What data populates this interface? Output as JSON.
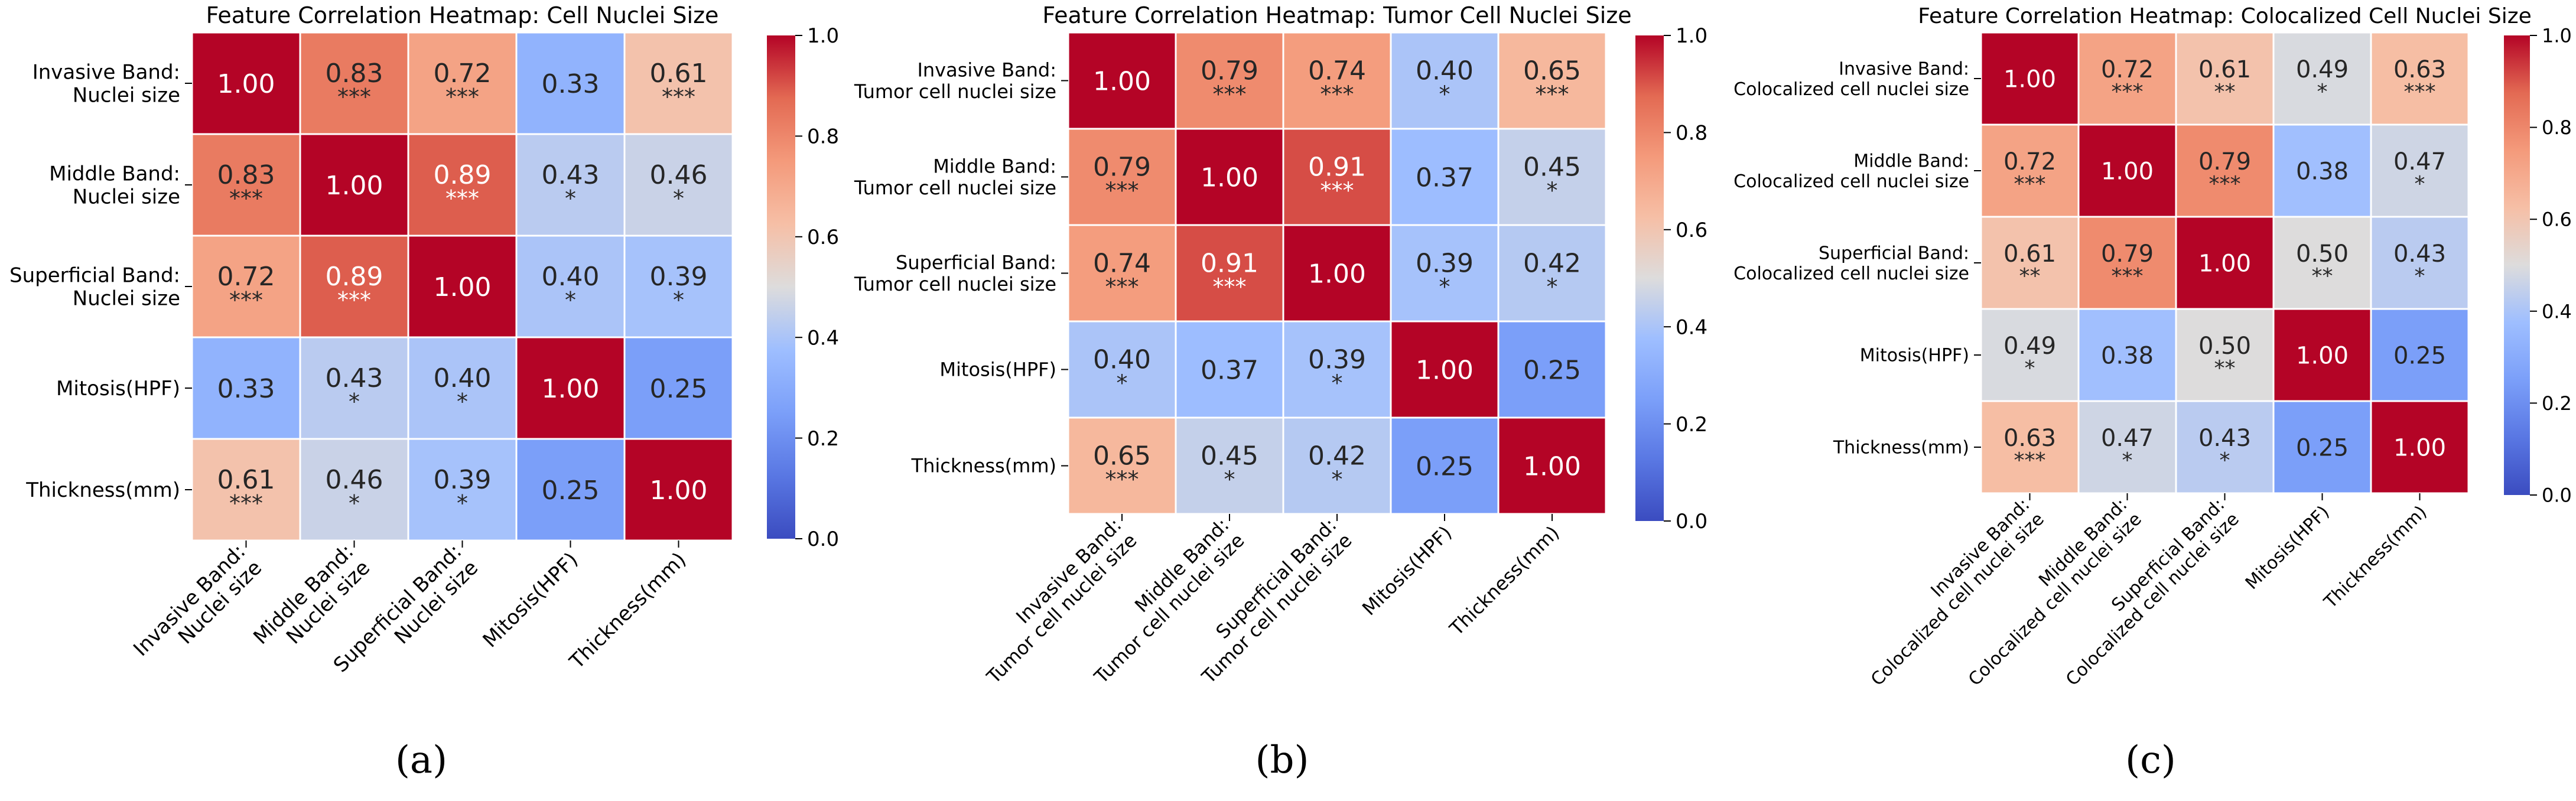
{
  "captions": {
    "a": "(a)",
    "b": "(b)",
    "c": "(c)"
  },
  "chart_data": [
    {
      "type": "heatmap",
      "title": "Feature Correlation Heatmap: Cell Nuclei Size",
      "row_labels": [
        [
          "Invasive Band:",
          "Nuclei size"
        ],
        [
          "Middle Band:",
          "Nuclei size"
        ],
        [
          "Superficial Band:",
          "Nuclei size"
        ],
        [
          "Mitosis(HPF)"
        ],
        [
          "Thickness(mm)"
        ]
      ],
      "col_labels": [
        [
          "Invasive Band:",
          "Nuclei size"
        ],
        [
          "Middle Band:",
          "Nuclei size"
        ],
        [
          "Superficial Band:",
          "Nuclei size"
        ],
        [
          "Mitosis(HPF)"
        ],
        [
          "Thickness(mm)"
        ]
      ],
      "values": [
        [
          1.0,
          0.83,
          0.72,
          0.33,
          0.61
        ],
        [
          0.83,
          1.0,
          0.89,
          0.43,
          0.46
        ],
        [
          0.72,
          0.89,
          1.0,
          0.4,
          0.39
        ],
        [
          0.33,
          0.43,
          0.4,
          1.0,
          0.25
        ],
        [
          0.61,
          0.46,
          0.39,
          0.25,
          1.0
        ]
      ],
      "stars": [
        [
          "",
          "***",
          "***",
          "",
          "***"
        ],
        [
          "***",
          "",
          "***",
          "*",
          "*"
        ],
        [
          "***",
          "***",
          "",
          "*",
          "*"
        ],
        [
          "",
          "*",
          "*",
          "",
          ""
        ],
        [
          "***",
          "*",
          "*",
          "",
          ""
        ]
      ],
      "colorbar": {
        "vmin": 0,
        "vmax": 1,
        "ticks": [
          "0.0",
          "0.2",
          "0.4",
          "0.6",
          "0.8",
          "1.0"
        ]
      }
    },
    {
      "type": "heatmap",
      "title": "Feature Correlation Heatmap: Tumor Cell Nuclei Size",
      "row_labels": [
        [
          "Invasive Band:",
          "Tumor cell nuclei size"
        ],
        [
          "Middle Band:",
          "Tumor cell nuclei size"
        ],
        [
          "Superficial Band:",
          "Tumor cell nuclei size"
        ],
        [
          "Mitosis(HPF)"
        ],
        [
          "Thickness(mm)"
        ]
      ],
      "col_labels": [
        [
          "Invasive Band:",
          "Tumor cell nuclei size"
        ],
        [
          "Middle Band:",
          "Tumor cell nuclei size"
        ],
        [
          "Superficial Band:",
          "Tumor cell nuclei size"
        ],
        [
          "Mitosis(HPF)"
        ],
        [
          "Thickness(mm)"
        ]
      ],
      "values": [
        [
          1.0,
          0.79,
          0.74,
          0.4,
          0.65
        ],
        [
          0.79,
          1.0,
          0.91,
          0.37,
          0.45
        ],
        [
          0.74,
          0.91,
          1.0,
          0.39,
          0.42
        ],
        [
          0.4,
          0.37,
          0.39,
          1.0,
          0.25
        ],
        [
          0.65,
          0.45,
          0.42,
          0.25,
          1.0
        ]
      ],
      "stars": [
        [
          "",
          "***",
          "***",
          "*",
          "***"
        ],
        [
          "***",
          "",
          "***",
          "",
          "*"
        ],
        [
          "***",
          "***",
          "",
          "*",
          "*"
        ],
        [
          "*",
          "",
          "*",
          "",
          ""
        ],
        [
          "***",
          "*",
          "*",
          "",
          ""
        ]
      ],
      "colorbar": {
        "vmin": 0,
        "vmax": 1,
        "ticks": [
          "0.0",
          "0.2",
          "0.4",
          "0.6",
          "0.8",
          "1.0"
        ]
      }
    },
    {
      "type": "heatmap",
      "title": "Feature Correlation Heatmap: Colocalized Cell Nuclei Size",
      "row_labels": [
        [
          "Invasive Band:",
          "Colocalized cell nuclei size"
        ],
        [
          "Middle Band:",
          "Colocalized cell nuclei size"
        ],
        [
          "Superficial Band:",
          "Colocalized cell nuclei size"
        ],
        [
          "Mitosis(HPF)"
        ],
        [
          "Thickness(mm)"
        ]
      ],
      "col_labels": [
        [
          "Invasive Band:",
          "Colocalized cell nuclei size"
        ],
        [
          "Middle Band:",
          "Colocalized cell nuclei size"
        ],
        [
          "Superficial Band:",
          "Colocalized cell nuclei size"
        ],
        [
          "Mitosis(HPF)"
        ],
        [
          "Thickness(mm)"
        ]
      ],
      "values": [
        [
          1.0,
          0.72,
          0.61,
          0.49,
          0.63
        ],
        [
          0.72,
          1.0,
          0.79,
          0.38,
          0.47
        ],
        [
          0.61,
          0.79,
          1.0,
          0.5,
          0.43
        ],
        [
          0.49,
          0.38,
          0.5,
          1.0,
          0.25
        ],
        [
          0.63,
          0.47,
          0.43,
          0.25,
          1.0
        ]
      ],
      "stars": [
        [
          "",
          "***",
          "**",
          "*",
          "***"
        ],
        [
          "***",
          "",
          "***",
          "",
          "*"
        ],
        [
          "**",
          "***",
          "",
          "**",
          "*"
        ],
        [
          "*",
          "",
          "**",
          "",
          ""
        ],
        [
          "***",
          "*",
          "*",
          "",
          ""
        ]
      ],
      "colorbar": {
        "vmin": 0,
        "vmax": 1,
        "ticks": [
          "0.0",
          "0.2",
          "0.4",
          "0.6",
          "0.8",
          "1.0"
        ]
      }
    }
  ]
}
